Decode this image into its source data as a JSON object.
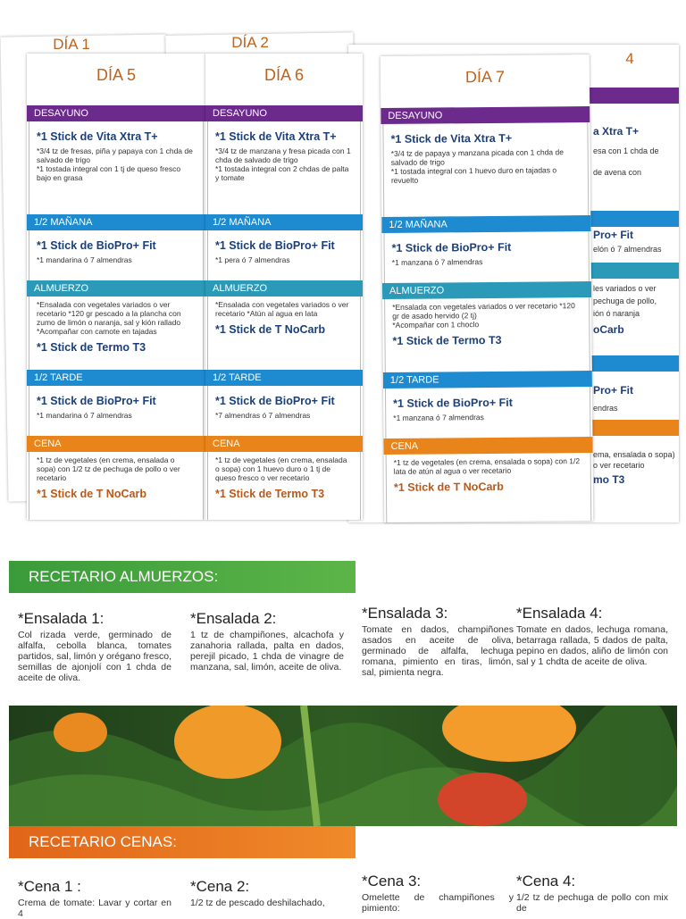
{
  "background_days": [
    "DÍA 1",
    "DÍA 2",
    "4"
  ],
  "background_fragments": [
    "a Xtra T+",
    "esa con 1 chda de",
    "de avena con",
    "Pro+ Fit",
    "elón ó 7 almendras",
    "les variados o ver",
    "pechuga de pollo,",
    "ión ó naranja",
    "oCarb",
    "Pro+ Fit",
    "endras",
    "ema, ensalada o sopa)",
    "o ver recetario",
    "mo T3"
  ],
  "days": [
    {
      "label": "DÍA 5",
      "sections": [
        {
          "title": "DESAYUNO",
          "stick": "*1 Stick de Vita Xtra T+",
          "notes": [
            "*3/4 tz de fresas, piña y papaya con 1 chda de salvado de trigo",
            "*1 tostada integral con 1 tj de queso fresco bajo en grasa"
          ]
        },
        {
          "title": "1/2 MAÑANA",
          "stick": "*1 Stick de BioPro+ Fit",
          "notes": [
            "*1 mandarina ó 7 almendras"
          ]
        },
        {
          "title": "ALMUERZO",
          "notes": [
            "*Ensalada con vegetales variados o ver recetario *120 gr pescado a la plancha con zumo de limón o naranja, sal y kión rallado",
            "*Acompañar con camote en tajadas"
          ],
          "stick": "*1 Stick de Termo T3"
        },
        {
          "title": "1/2 TARDE",
          "stick": "*1 Stick de BioPro+ Fit",
          "notes": [
            "*1 mandarina ó 7 almendras"
          ]
        },
        {
          "title": "CENA",
          "notes": [
            "*1 tz de vegetales (en crema, ensalada o sopa) con 1/2 tz de pechuga de pollo o ver recetario"
          ],
          "stick": "*1 Stick de T NoCarb"
        }
      ]
    },
    {
      "label": "DÍA 6",
      "sections": [
        {
          "title": "DESAYUNO",
          "stick": "*1 Stick de Vita Xtra T+",
          "notes": [
            "*3/4 tz de manzana y fresa picada con 1 chda de salvado de trigo",
            "*1 tostada integral con 2 chdas de palta y tomate"
          ]
        },
        {
          "title": "1/2 MAÑANA",
          "stick": "*1 Stick de BioPro+ Fit",
          "notes": [
            "*1 pera ó 7 almendras"
          ]
        },
        {
          "title": "ALMUERZO",
          "notes": [
            "*Ensalada con vegetales variados o ver recetario *Atún al agua en lata"
          ],
          "stick": "*1 Stick de T NoCarb"
        },
        {
          "title": "1/2 TARDE",
          "stick": "*1 Stick de BioPro+ Fit",
          "notes": [
            "*7 almendras ó 7 almendras"
          ]
        },
        {
          "title": "CENA",
          "notes": [
            "*1 tz de vegetales (en crema, ensalada o sopa) con 1 huevo duro o 1 tj de queso fresco o ver recetario"
          ],
          "stick": "*1 Stick de Termo T3"
        }
      ]
    },
    {
      "label": "DÍA 7",
      "sections": [
        {
          "title": "DESAYUNO",
          "stick": "*1 Stick de Vita Xtra T+",
          "notes": [
            "*3/4 tz de papaya y manzana picada con 1 chda de salvado de trigo",
            "*1 tostada integral con 1 huevo duro en tajadas o revuelto"
          ]
        },
        {
          "title": "1/2 MAÑANA",
          "stick": "*1 Stick de BioPro+ Fit",
          "notes": [
            "*1 manzana ó 7 almendras"
          ]
        },
        {
          "title": "ALMUERZO",
          "notes": [
            "*Ensalada con vegetales variados o ver recetario *120 gr de asado hervido (2 tj)",
            "*Acompañar con 1 choclo"
          ],
          "stick": "*1 Stick de Termo T3"
        },
        {
          "title": "1/2 TARDE",
          "stick": "*1 Stick de BioPro+ Fit",
          "notes": [
            "*1 manzana ó 7 almendras"
          ]
        },
        {
          "title": "CENA",
          "notes": [
            "*1 tz de vegetales (en crema, ensalada o sopa) con 1/2 lata de atún al agua o ver recetario"
          ],
          "stick": "*1 Stick de T NoCarb"
        }
      ]
    }
  ],
  "almuerzos": {
    "title": "RECETARIO ALMUERZOS:",
    "recipes": [
      {
        "name": "*Ensalada 1:",
        "text": "Col rizada verde, germinado de alfalfa, cebolla blanca, tomates partidos, sal, limón y orégano fresco, semillas de ajonjolí con 1 chda de aceite de oliva."
      },
      {
        "name": "*Ensalada 2:",
        "text": "1 tz de champiñones, alcachofa y zanahoria rallada, palta en dados, perejil picado, 1 chda de vinagre de manzana, sal, limón, aceite de oliva."
      },
      {
        "name": "*Ensalada 3:",
        "text": "Tomate en dados, champiñones asados en aceite de oliva, germinado de alfalfa, lechuga romana, pimiento en tiras, limón, sal, pimienta negra."
      },
      {
        "name": "*Ensalada 4:",
        "text": "Tomate en dados, lechuga romana, betarraga rallada, 5 dados de palta, pepino en dados, aliño de limón con sal y 1 chdta de aceite de oliva."
      }
    ]
  },
  "cenas": {
    "title": "RECETARIO CENAS:",
    "recipes": [
      {
        "name": "*Cena 1 :",
        "text": "Crema de tomate: Lavar y cortar en 4"
      },
      {
        "name": "*Cena 2:",
        "text": "1/2 tz de pescado deshilachado,"
      },
      {
        "name": "*Cena 3:",
        "text": "Omelette de champiñones y pimiento:"
      },
      {
        "name": "*Cena 4:",
        "text": "1/2 tz de pechuga de pollo con mix de"
      }
    ]
  }
}
